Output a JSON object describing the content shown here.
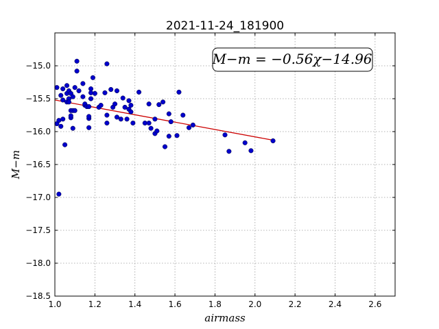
{
  "chart_data": {
    "type": "scatter",
    "title": "2021-11-24_181900",
    "xlabel": "airmass",
    "ylabel": "M−m",
    "xlim": [
      1.0,
      2.7
    ],
    "ylim": [
      -18.5,
      -14.5
    ],
    "x_ticks": [
      "1.0",
      "1.2",
      "1.4",
      "1.6",
      "1.8",
      "2.0",
      "2.2",
      "2.4",
      "2.6"
    ],
    "y_ticks": [
      "−15.0",
      "−15.5",
      "−16.0",
      "−16.5",
      "−17.0",
      "−17.5",
      "−18.0",
      "−18.5"
    ],
    "grid": true,
    "annotation": "M−m = −0.56χ−14.96",
    "fit_line": {
      "x": [
        1.0,
        2.1
      ],
      "y": [
        -15.52,
        -16.136
      ]
    },
    "point_color": "#0000cc",
    "line_color": "#cc0000",
    "points": [
      [
        1.01,
        -15.33
      ],
      [
        1.01,
        -15.88
      ],
      [
        1.02,
        -15.83
      ],
      [
        1.02,
        -16.95
      ],
      [
        1.03,
        -15.92
      ],
      [
        1.03,
        -15.45
      ],
      [
        1.04,
        -15.35
      ],
      [
        1.04,
        -15.52
      ],
      [
        1.04,
        -15.81
      ],
      [
        1.05,
        -16.2
      ],
      [
        1.06,
        -15.55
      ],
      [
        1.06,
        -15.42
      ],
      [
        1.06,
        -15.3
      ],
      [
        1.07,
        -15.38
      ],
      [
        1.07,
        -15.5
      ],
      [
        1.07,
        -15.55
      ],
      [
        1.08,
        -15.68
      ],
      [
        1.08,
        -15.79
      ],
      [
        1.08,
        -15.76
      ],
      [
        1.08,
        -15.42
      ],
      [
        1.09,
        -15.47
      ],
      [
        1.09,
        -15.95
      ],
      [
        1.09,
        -15.68
      ],
      [
        1.1,
        -15.33
      ],
      [
        1.1,
        -15.68
      ],
      [
        1.11,
        -14.93
      ],
      [
        1.11,
        -15.08
      ],
      [
        1.12,
        -15.38
      ],
      [
        1.14,
        -15.27
      ],
      [
        1.14,
        -15.47
      ],
      [
        1.15,
        -15.6
      ],
      [
        1.15,
        -15.58
      ],
      [
        1.16,
        -15.62
      ],
      [
        1.17,
        -15.8
      ],
      [
        1.17,
        -15.62
      ],
      [
        1.17,
        -15.77
      ],
      [
        1.17,
        -15.94
      ],
      [
        1.18,
        -15.35
      ],
      [
        1.18,
        -15.41
      ],
      [
        1.18,
        -15.5
      ],
      [
        1.19,
        -15.18
      ],
      [
        1.2,
        -15.42
      ],
      [
        1.22,
        -15.63
      ],
      [
        1.23,
        -15.6
      ],
      [
        1.25,
        -15.41
      ],
      [
        1.26,
        -14.97
      ],
      [
        1.26,
        -15.75
      ],
      [
        1.26,
        -15.87
      ],
      [
        1.28,
        -15.36
      ],
      [
        1.29,
        -15.63
      ],
      [
        1.3,
        -15.58
      ],
      [
        1.31,
        -15.78
      ],
      [
        1.31,
        -15.38
      ],
      [
        1.33,
        -15.81
      ],
      [
        1.34,
        -15.49
      ],
      [
        1.35,
        -15.63
      ],
      [
        1.36,
        -15.81
      ],
      [
        1.37,
        -15.53
      ],
      [
        1.37,
        -15.66
      ],
      [
        1.38,
        -15.7
      ],
      [
        1.38,
        -15.6
      ],
      [
        1.39,
        -15.87
      ],
      [
        1.42,
        -15.4
      ],
      [
        1.45,
        -15.87
      ],
      [
        1.47,
        -15.58
      ],
      [
        1.47,
        -15.87
      ],
      [
        1.48,
        -15.95
      ],
      [
        1.5,
        -16.03
      ],
      [
        1.5,
        -15.81
      ],
      [
        1.51,
        -15.99
      ],
      [
        1.52,
        -15.59
      ],
      [
        1.54,
        -15.55
      ],
      [
        1.55,
        -16.23
      ],
      [
        1.57,
        -16.07
      ],
      [
        1.57,
        -15.73
      ],
      [
        1.58,
        -15.85
      ],
      [
        1.61,
        -16.06
      ],
      [
        1.62,
        -15.4
      ],
      [
        1.64,
        -15.75
      ],
      [
        1.67,
        -15.94
      ],
      [
        1.69,
        -15.9
      ],
      [
        1.85,
        -16.05
      ],
      [
        1.87,
        -16.3
      ],
      [
        1.95,
        -16.17
      ],
      [
        1.98,
        -16.29
      ],
      [
        2.09,
        -16.14
      ]
    ]
  }
}
